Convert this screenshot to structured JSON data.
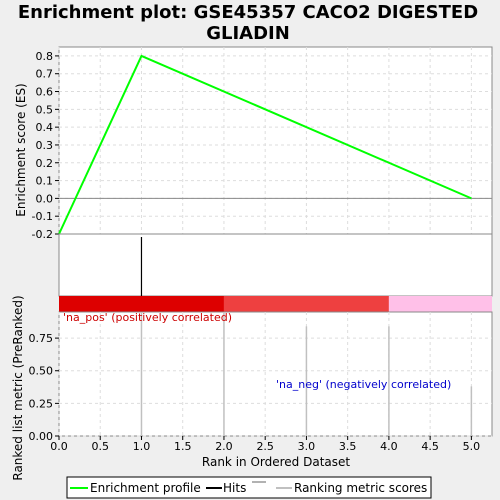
{
  "title_line1": "Enrichment plot: GSE45357 CACO2 DIGESTED",
  "title_line2": "GLIADIN",
  "colors": {
    "profile": "#00ff00",
    "hits": "#000000",
    "metric": "#c0c0c0",
    "pos_label": "#cc0000",
    "neg_label": "#0000cc",
    "band_dark_red": "#dd0000",
    "band_red": "#ee4040",
    "band_pink": "#ffc0e8",
    "grid": "#dddddd",
    "background": "#efefef"
  },
  "chart_data": {
    "type": "line",
    "xlabel": "Rank in Ordered Dataset",
    "xlim": [
      0,
      5.25
    ],
    "x_ticks": [
      "0.0",
      "0.5",
      "1.0",
      "1.5",
      "2.0",
      "2.5",
      "3.0",
      "3.5",
      "4.0",
      "4.5",
      "5.0"
    ],
    "es_panel": {
      "ylabel": "Enrichment score (ES)",
      "ylim": [
        -0.2,
        0.85
      ],
      "y_ticks": [
        "-0.2",
        "-0.1",
        "0.0",
        "0.1",
        "0.2",
        "0.3",
        "0.4",
        "0.5",
        "0.6",
        "0.7",
        "0.8"
      ],
      "profile_x": [
        0,
        1,
        5
      ],
      "profile_y": [
        -0.2,
        0.8,
        0.0
      ]
    },
    "hits": [
      1
    ],
    "bands": [
      {
        "from": 0,
        "to": 2,
        "color": "#dd0000"
      },
      {
        "from": 2,
        "to": 4,
        "color": "#ee4040"
      },
      {
        "from": 4,
        "to": 5.25,
        "color": "#ffc0e8"
      }
    ],
    "metric_panel": {
      "ylabel": "Ranked list metric (PreRanked)",
      "ylim": [
        0,
        0.95
      ],
      "y_ticks": [
        "0.00",
        "0.25",
        "0.50",
        "0.75"
      ],
      "x": [
        1,
        2,
        3,
        4,
        5
      ],
      "values": [
        0.95,
        0.95,
        0.84,
        0.84,
        0.38
      ]
    },
    "pos_label": "'na_pos' (positively correlated)",
    "neg_label": "'na_neg' (negatively correlated)",
    "legend": {
      "placement": "bottom",
      "entries": [
        "Enrichment profile",
        "Hits",
        "Ranking metric scores"
      ]
    }
  }
}
